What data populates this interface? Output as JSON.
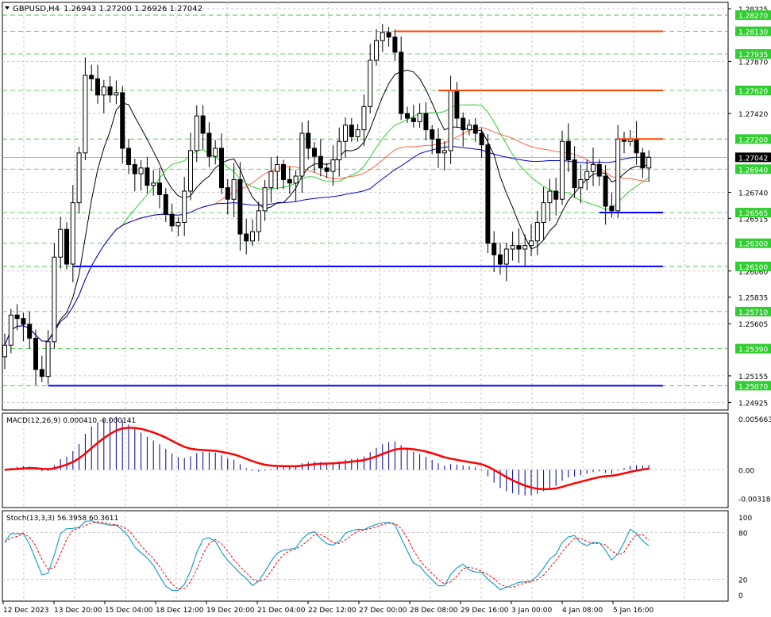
{
  "header": {
    "symbol": "GBPUSD,H4",
    "ohlc": "1.26943 1.27200 1.26926 1.27042"
  },
  "colors": {
    "background": "#ffffff",
    "candle": "#000000",
    "grid": "#c8c8c8",
    "level_grid": "#3cbc3c",
    "level_label_bg": "#32cd32",
    "resistance": "#ff4500",
    "support": "#0000ff",
    "ma_fast": "#000000",
    "ma_mid": "#32cd32",
    "ma_slow": "#ff6347",
    "ma_slowest": "#0000cd",
    "macd_hist": "#00008b",
    "macd_signal": "#ff0000",
    "stoch_main": "#1ea0c8",
    "stoch_signal": "#ff0000"
  },
  "chart_data": {
    "type": "candlestick",
    "price_axis": {
      "ylim": [
        1.2486,
        1.2838
      ],
      "ticks": [
        "1.28325",
        "1.27870",
        "1.27420",
        "1.26740",
        "1.26515",
        "1.26060",
        "1.25835",
        "1.25605",
        "1.25155",
        "1.24925"
      ]
    },
    "level_labels": [
      "1.28270",
      "1.28130",
      "1.27935",
      "1.27620",
      "1.27200",
      "1.26940",
      "1.26565",
      "1.26300",
      "1.26100",
      "1.25710",
      "1.25390",
      "1.25070"
    ],
    "current_price": "1.27042",
    "resistance_levels": [
      1.2813,
      1.2762,
      1.272
    ],
    "support_levels": [
      1.26565,
      1.261,
      1.2507
    ],
    "time_labels": [
      "12 Dec 2023",
      "13 Dec 20:00",
      "15 Dec 04:00",
      "18 Dec 12:00",
      "19 Dec 20:00",
      "21 Dec 04:00",
      "22 Dec 12:00",
      "27 Dec 00:00",
      "28 Dec 08:00",
      "29 Dec 16:00",
      "3 Jan 00:00",
      "4 Jan 08:00",
      "5 Jan 16:00"
    ],
    "closes": [
      1.2542,
      1.2568,
      1.2565,
      1.256,
      1.2548,
      1.2521,
      1.2515,
      1.2545,
      1.2618,
      1.2642,
      1.2612,
      1.2665,
      1.2708,
      1.2775,
      1.2772,
      1.2758,
      1.2765,
      1.2758,
      1.276,
      1.2712,
      1.2698,
      1.269,
      1.2695,
      1.268,
      1.2682,
      1.2672,
      1.2655,
      1.2645,
      1.2648,
      1.2675,
      1.271,
      1.274,
      1.2725,
      1.2705,
      1.2712,
      1.2678,
      1.2668,
      1.2685,
      1.2638,
      1.2632,
      1.264,
      1.2658,
      1.2678,
      1.2692,
      1.2698,
      1.2685,
      1.2682,
      1.2688,
      1.2725,
      1.2712,
      1.2705,
      1.2695,
      1.2692,
      1.2702,
      1.2718,
      1.2732,
      1.2722,
      1.2728,
      1.2748,
      1.2788,
      1.2805,
      1.2812,
      1.2808,
      1.2795,
      1.2742,
      1.2738,
      1.2735,
      1.2742,
      1.2728,
      1.272,
      1.2708,
      1.271,
      1.2762,
      1.2738,
      1.2728,
      1.2732,
      1.2725,
      1.2715,
      1.263,
      1.262,
      1.2612,
      1.2625,
      1.2628,
      1.2625,
      1.2628,
      1.2632,
      1.2648,
      1.2665,
      1.2675,
      1.2668,
      1.2718,
      1.2702,
      1.2678,
      1.2685,
      1.2692,
      1.2698,
      1.2688,
      1.2662,
      1.2658,
      1.272,
      1.2718,
      1.272,
      1.2708,
      1.2695,
      1.27042
    ],
    "macd": {
      "label": "MACD(12,26,9) 0.000410 -0.000141",
      "ticks": [
        "0.005663",
        "0.00",
        "-0.003181"
      ],
      "ylim": [
        -0.0042,
        0.0063
      ]
    },
    "stochastic": {
      "label": "Stoch(13,3,3) 56.3958 60.3611",
      "ticks": [
        "100",
        "80",
        "20",
        "0"
      ],
      "ylim": [
        -8,
        108
      ]
    }
  }
}
